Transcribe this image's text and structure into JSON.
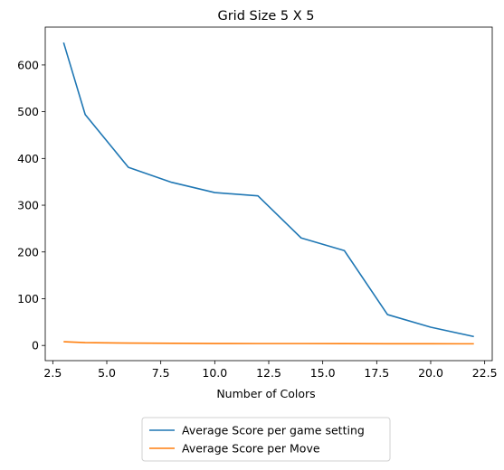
{
  "chart_data": {
    "type": "line",
    "title": "Grid Size 5 X 5",
    "xlabel": "Number of Colors",
    "ylabel": "",
    "xlim": [
      2.15,
      22.85
    ],
    "ylim": [
      -32.5,
      681
    ],
    "xticks": [
      2.5,
      5.0,
      7.5,
      10.0,
      12.5,
      15.0,
      17.5,
      20.0,
      22.5
    ],
    "xtick_labels": [
      "2.5",
      "5.0",
      "7.5",
      "10.0",
      "12.5",
      "15.0",
      "17.5",
      "20.0",
      "22.5"
    ],
    "yticks": [
      0,
      100,
      200,
      300,
      400,
      500,
      600
    ],
    "ytick_labels": [
      "0",
      "100",
      "200",
      "300",
      "400",
      "500",
      "600"
    ],
    "grid": false,
    "legend_position": "bottom-center-outside",
    "series": [
      {
        "name": "Average Score per game setting",
        "color": "#1f77b4",
        "x": [
          3,
          4,
          6,
          8,
          10,
          12,
          14,
          16,
          18,
          20,
          22
        ],
        "y": [
          648,
          494,
          381,
          349,
          327,
          320,
          230,
          203,
          66,
          39,
          19
        ]
      },
      {
        "name": "Average Score per Move",
        "color": "#ff7f0e",
        "x": [
          3,
          4,
          6,
          8,
          10,
          12,
          14,
          16,
          18,
          20,
          22
        ],
        "y": [
          8,
          6,
          5,
          4.5,
          4.2,
          4,
          4,
          3.8,
          3.7,
          3.6,
          3.5
        ]
      }
    ]
  }
}
